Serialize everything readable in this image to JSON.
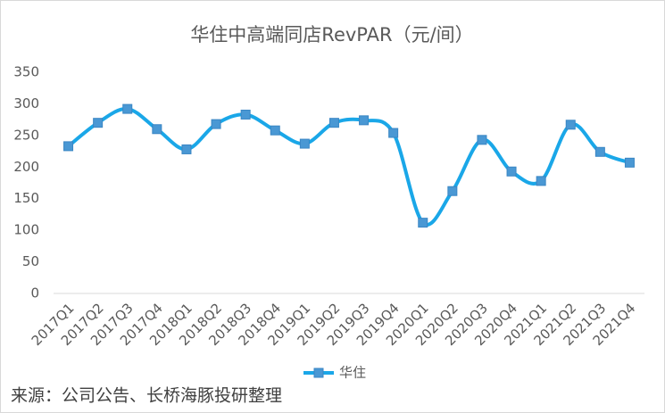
{
  "chart_data": {
    "type": "line",
    "title": "华住中高端同店RevPAR（元/间）",
    "categories": [
      "2017Q1",
      "2017Q2",
      "2017Q3",
      "2017Q4",
      "2018Q1",
      "2018Q2",
      "2018Q3",
      "2018Q4",
      "2019Q1",
      "2019Q2",
      "2019Q3",
      "2019Q4",
      "2020Q1",
      "2020Q2",
      "2020Q3",
      "2020Q4",
      "2021Q1",
      "2021Q2",
      "2021Q3",
      "2021Q4"
    ],
    "series": [
      {
        "name": "华住",
        "color": "#1aa7e8",
        "marker_color": "#4a98d4",
        "values": [
          233,
          270,
          292,
          260,
          228,
          268,
          283,
          258,
          237,
          270,
          274,
          254,
          112,
          162,
          243,
          193,
          178,
          267,
          224,
          207
        ]
      }
    ],
    "ylim": [
      0,
      350
    ],
    "yticks": [
      0,
      50,
      100,
      150,
      200,
      250,
      300,
      350
    ],
    "grid": false,
    "smooth": true,
    "legend": "bottom",
    "source": "来源：公司公告、长桥海豚投研整理"
  }
}
